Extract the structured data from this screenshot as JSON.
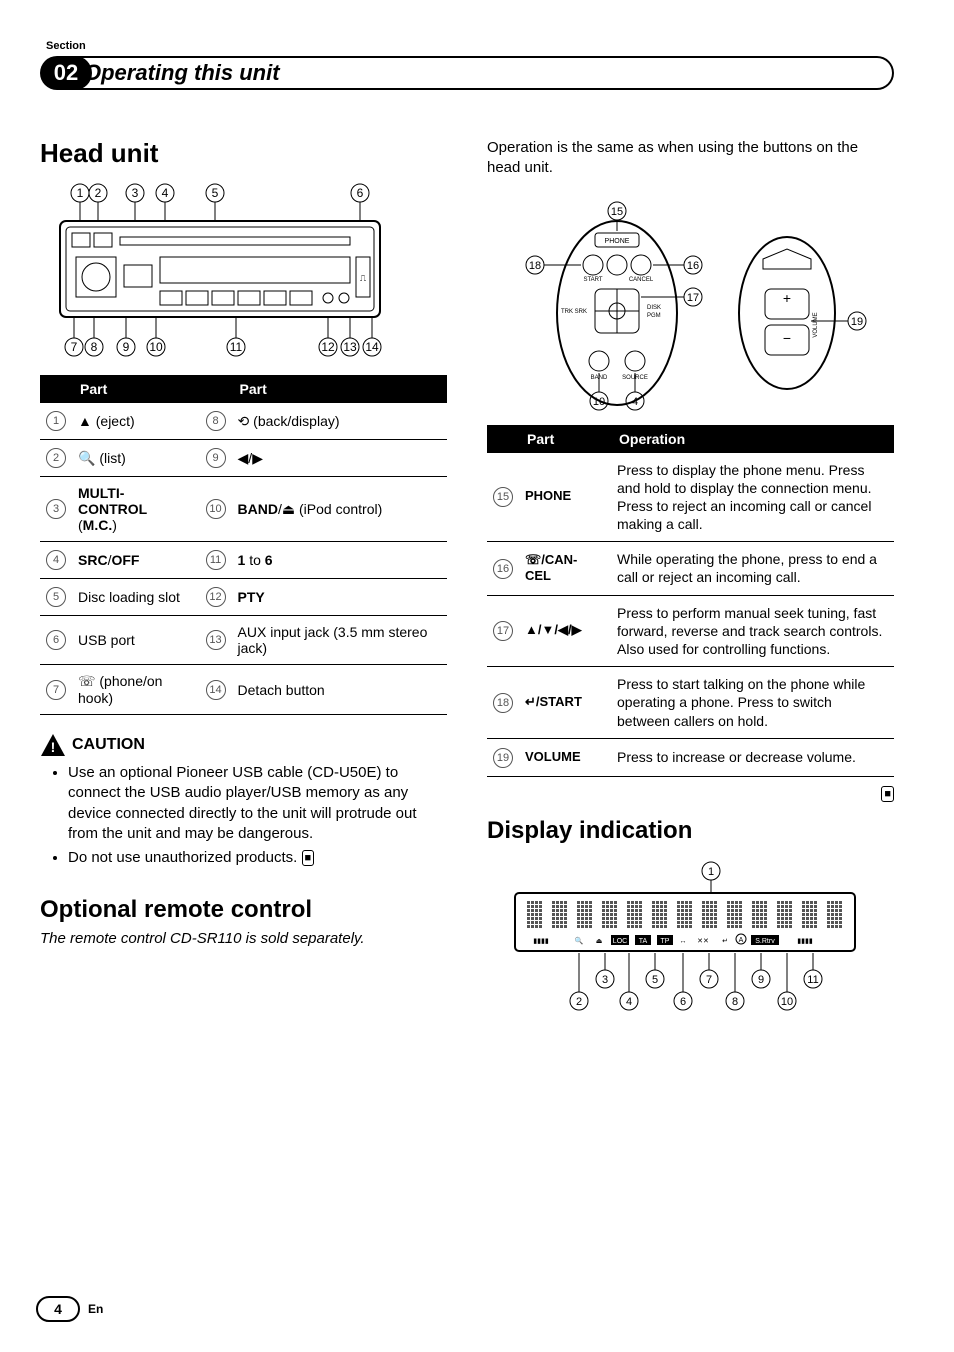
{
  "section": {
    "label": "Section",
    "number": "02",
    "title": "Operating this unit"
  },
  "left": {
    "head_unit_title": "Head unit",
    "parts_header1": "Part",
    "parts_header2": "Part",
    "parts": [
      {
        "n1": "1",
        "p1": "▲ (eject)",
        "n2": "8",
        "p2": "⟲ (back/display)"
      },
      {
        "n1": "2",
        "p1": "🔍 (list)",
        "n2": "9",
        "p2": "◀/▶"
      },
      {
        "n1": "3",
        "p1": "MULTI-CONTROL (M.C.)",
        "n2": "10",
        "p2": "BAND/⏏ (iPod control)"
      },
      {
        "n1": "4",
        "p1": "SRC/OFF",
        "n2": "11",
        "p2": "1 to 6"
      },
      {
        "n1": "5",
        "p1": "Disc loading slot",
        "n2": "12",
        "p2": "PTY"
      },
      {
        "n1": "6",
        "p1": "USB port",
        "n2": "13",
        "p2": "AUX input jack (3.5 mm stereo jack)"
      },
      {
        "n1": "7",
        "p1": "☏ (phone/on hook)",
        "n2": "14",
        "p2": "Detach button"
      }
    ],
    "caution_label": "CAUTION",
    "caution_items": [
      "Use an optional Pioneer USB cable (CD-U50E) to connect the USB audio player/USB memory as any device connected directly to the unit will protrude out from the unit and may be dangerous.",
      "Do not use unauthorized products."
    ],
    "optional_title": "Optional remote control",
    "optional_note": "The remote control CD-SR110 is sold separately."
  },
  "right": {
    "intro": "Operation is the same as when using the buttons on the head unit.",
    "ops_header_part": "Part",
    "ops_header_op": "Operation",
    "ops_rows": [
      {
        "n": "15",
        "part": "PHONE",
        "op": "Press to display the phone menu. Press and hold to display the connection menu.\nPress to reject an incoming call or cancel making a call."
      },
      {
        "n": "16",
        "part": "☏/CANCEL",
        "op": "While operating the phone, press to end a call or reject an incoming call."
      },
      {
        "n": "17",
        "part": "▲/▼/◀/▶",
        "op": "Press to perform manual seek tuning, fast forward, reverse and track search controls. Also used for controlling functions."
      },
      {
        "n": "18",
        "part": "↵/START",
        "op": "Press to start talking on the phone while operating a phone. Press to switch between callers on hold."
      },
      {
        "n": "19",
        "part": "VOLUME",
        "op": "Press to increase or decrease volume."
      }
    ],
    "display_title": "Display indication"
  },
  "footer": {
    "page": "4",
    "lang": "En"
  },
  "drawing_callouts": {
    "head_top": [
      "1",
      "2",
      "3",
      "4",
      "5",
      "6"
    ],
    "head_bottom": [
      "7",
      "8",
      "9",
      "10",
      "11",
      "12",
      "13",
      "14"
    ],
    "remote_left": [
      "15",
      "16",
      "17",
      "18",
      "10",
      "4",
      "19"
    ],
    "display": [
      "1",
      "2",
      "3",
      "4",
      "5",
      "6",
      "7",
      "8",
      "9",
      "10",
      "11"
    ]
  }
}
